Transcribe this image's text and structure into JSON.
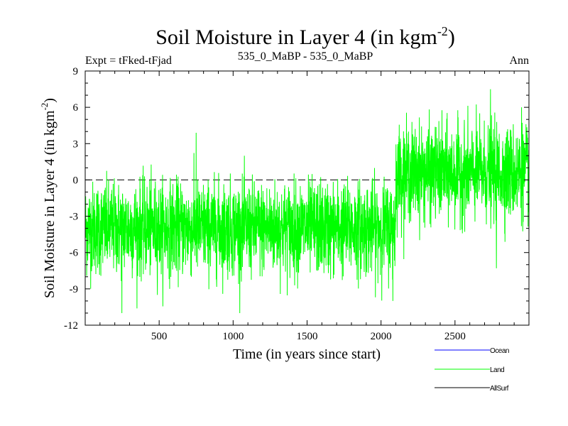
{
  "chart_data": {
    "type": "line",
    "title": "Soil Moisture in Layer 4 (in kgm",
    "title_superscript": "-2",
    "title_suffix": ")",
    "subtitle_left": "Expt = tFked-tFjad",
    "subtitle_center": "535_0_MaBP - 535_0_MaBP",
    "subtitle_right": "Ann",
    "xlabel": "Time (in years since start)",
    "ylabel": "Soil Moisture in Layer 4 (in kgm",
    "ylabel_superscript": "-2",
    "ylabel_suffix": ")",
    "xlim": [
      0,
      3000
    ],
    "ylim": [
      -12,
      9
    ],
    "x_ticks": [
      500,
      1000,
      1500,
      2000,
      2500
    ],
    "y_ticks": [
      -12,
      -9,
      -6,
      -3,
      0,
      3,
      6,
      9
    ],
    "zero_line": {
      "y": 0,
      "style": "dashed"
    },
    "series": [
      {
        "name": "Ocean",
        "color": "#0000ff",
        "values": []
      },
      {
        "name": "Land",
        "color": "#00ff00",
        "segments": [
          {
            "x_start": 0,
            "x_end": 2100,
            "mean": -4.0,
            "std": 1.9,
            "min": -11.0,
            "max": 3.9
          },
          {
            "x_start": 2100,
            "x_end": 3000,
            "mean": 0.6,
            "std": 1.9,
            "min": -7.3,
            "max": 7.5
          }
        ],
        "notable_points": [
          {
            "x": 248,
            "y": -11.0
          },
          {
            "x": 750,
            "y": 3.9
          },
          {
            "x": 2740,
            "y": 7.5
          },
          {
            "x": 2950,
            "y": 6.0
          },
          {
            "x": 2080,
            "y": -10.0
          },
          {
            "x": 2780,
            "y": -7.3
          }
        ]
      },
      {
        "name": "AllSurf",
        "color": "#000000",
        "values": []
      }
    ],
    "legend_placement": "bottom-right"
  }
}
